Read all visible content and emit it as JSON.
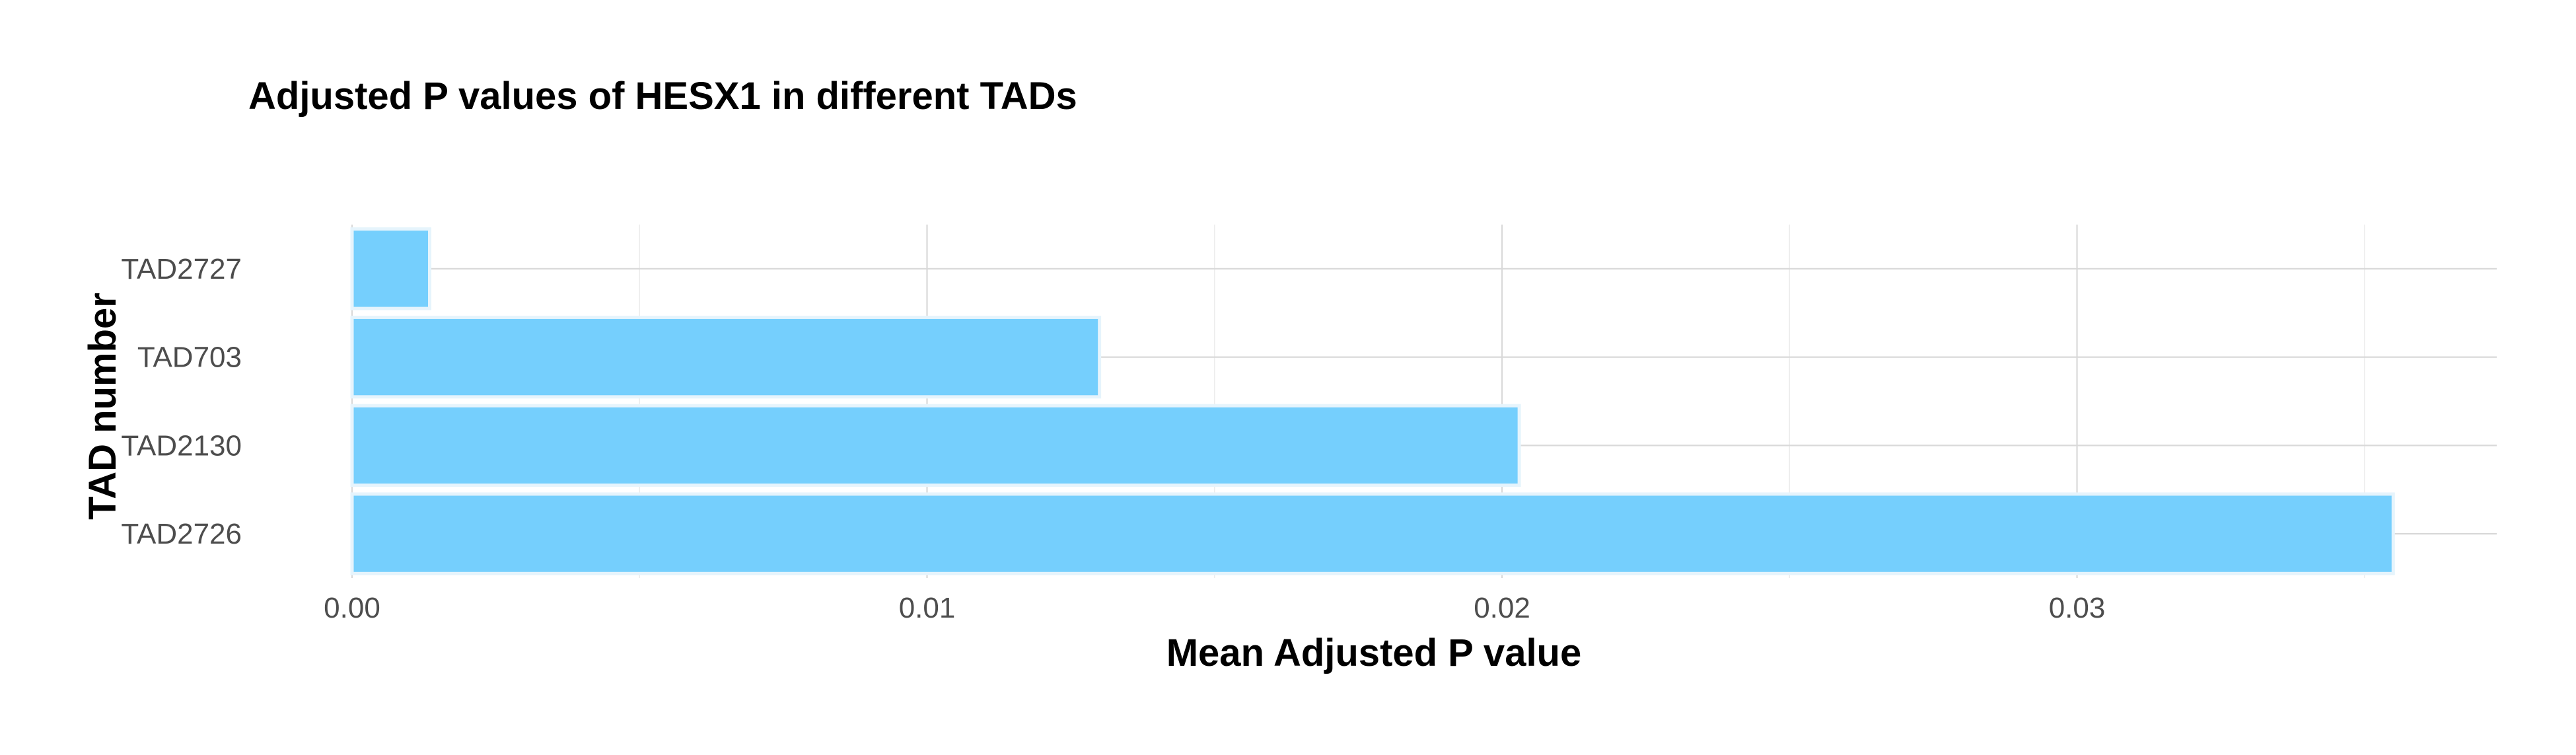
{
  "chart_data": {
    "type": "bar",
    "orientation": "horizontal",
    "title": "Adjusted P values of HESX1 in different TADs",
    "xlabel": "Mean Adjusted P value",
    "ylabel": "TAD number",
    "categories": [
      "TAD2727",
      "TAD703",
      "TAD2130",
      "TAD2726"
    ],
    "values": [
      0.00135,
      0.013,
      0.0203,
      0.0355
    ],
    "xlim": [
      0,
      0.0373
    ],
    "x_ticks": [
      0.0,
      0.01,
      0.02,
      0.03
    ],
    "x_tick_labels": [
      "0.00",
      "0.01",
      "0.02",
      "0.03"
    ],
    "grid": true,
    "legend": "none",
    "bar_color": "#75CFFD",
    "bar_edge_color": "#E6F4FC"
  }
}
